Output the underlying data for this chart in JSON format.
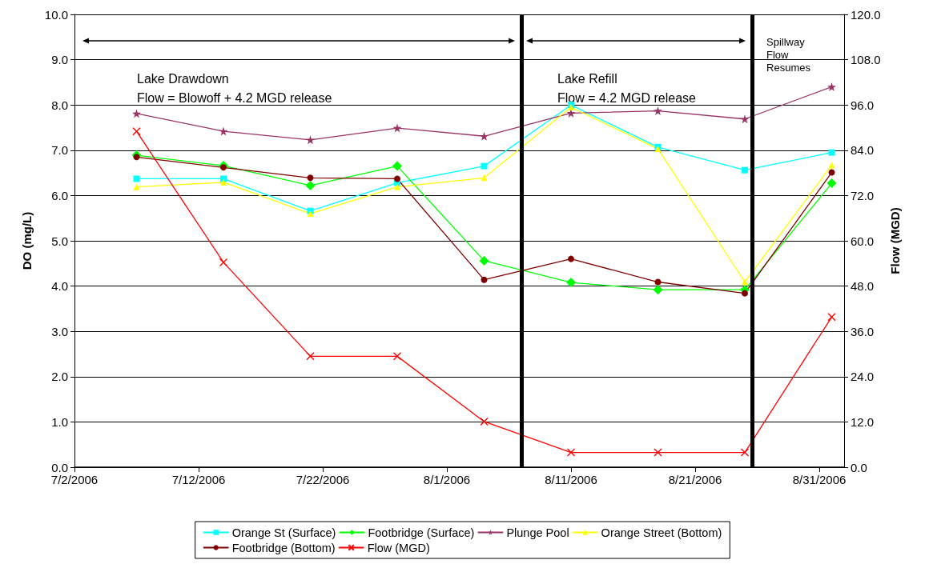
{
  "chart_data": {
    "type": "line",
    "ylabel": "DO (mg/L)",
    "y2label": "Flow (MGD)",
    "x": [
      "2006-07-07",
      "2006-07-14",
      "2006-07-21",
      "2006-07-28",
      "2006-08-04",
      "2006-08-11",
      "2006-08-18",
      "2006-08-25",
      "2006-09-01"
    ],
    "series": [
      {
        "name": "Orange St (Surface)",
        "color": "#00ffff",
        "marker": "square",
        "values": [
          6.37,
          6.37,
          5.66,
          6.28,
          6.65,
          8.0,
          7.07,
          6.56,
          6.95
        ]
      },
      {
        "name": "Footbridge (Surface)",
        "color": "#00ff00",
        "marker": "diamond",
        "values": [
          6.89,
          6.66,
          6.22,
          6.65,
          4.56,
          4.08,
          3.92,
          3.92,
          6.27
        ]
      },
      {
        "name": "Plunge Pool",
        "color": "#993366",
        "marker": "star",
        "values": [
          7.81,
          7.42,
          7.23,
          7.49,
          7.31,
          7.82,
          7.87,
          7.69,
          8.4
        ]
      },
      {
        "name": "Orange Street (Bottom)",
        "color": "#ffff00",
        "marker": "triangle",
        "values": [
          6.19,
          6.29,
          5.6,
          6.19,
          6.39,
          7.95,
          7.03,
          4.09,
          6.67
        ]
      },
      {
        "name": "Footbridge (Bottom)",
        "color": "#800000",
        "marker": "circle",
        "values": [
          6.85,
          6.62,
          6.39,
          6.37,
          4.14,
          4.6,
          4.09,
          3.84,
          6.51
        ]
      },
      {
        "name": "Flow (MGD)",
        "color": "#ff0000",
        "marker": "cross",
        "axis": "y2",
        "values": [
          89.0,
          54.3,
          29.4,
          29.4,
          12.1,
          3.9,
          3.9,
          3.9,
          39.8
        ]
      }
    ],
    "xlim": [
      "2006-07-02",
      "2006-09-02"
    ],
    "xticks": [
      {
        "value": "2006-07-02",
        "label": "7/2/2006"
      },
      {
        "value": "2006-07-12",
        "label": "7/12/2006"
      },
      {
        "value": "2006-07-22",
        "label": "7/22/2006"
      },
      {
        "value": "2006-08-01",
        "label": "8/1/2006"
      },
      {
        "value": "2006-08-11",
        "label": "8/11/2006"
      },
      {
        "value": "2006-08-21",
        "label": "8/21/2006"
      },
      {
        "value": "2006-08-31",
        "label": "8/31/2006"
      }
    ],
    "ylim": [
      0,
      10
    ],
    "yticks": [
      {
        "value": 0,
        "label": "0.0"
      },
      {
        "value": 1,
        "label": "1.0"
      },
      {
        "value": 2,
        "label": "2.0"
      },
      {
        "value": 3,
        "label": "3.0"
      },
      {
        "value": 4,
        "label": "4.0"
      },
      {
        "value": 5,
        "label": "5.0"
      },
      {
        "value": 6,
        "label": "6.0"
      },
      {
        "value": 7,
        "label": "7.0"
      },
      {
        "value": 8,
        "label": "8.0"
      },
      {
        "value": 9,
        "label": "9.0"
      },
      {
        "value": 10,
        "label": "10.0"
      }
    ],
    "y2lim": [
      0,
      120
    ],
    "y2ticks": [
      {
        "value": 0,
        "label": "0.0"
      },
      {
        "value": 12,
        "label": "12.0"
      },
      {
        "value": 24,
        "label": "24.0"
      },
      {
        "value": 36,
        "label": "36.0"
      },
      {
        "value": 48,
        "label": "48.0"
      },
      {
        "value": 60,
        "label": "60.0"
      },
      {
        "value": 72,
        "label": "72.0"
      },
      {
        "value": 84,
        "label": "84.0"
      },
      {
        "value": 96,
        "label": "96.0"
      },
      {
        "value": 108,
        "label": "108.0"
      },
      {
        "value": 120,
        "label": "120.0"
      }
    ],
    "ref_lines": [
      {
        "axis": "x",
        "value": "2006-08-07",
        "color": "#000000"
      },
      {
        "axis": "x",
        "value": "2006-08-25T14:00",
        "color": "#000000"
      }
    ],
    "annotations": [
      "Lake Drawdown\nFlow = Blowoff + 4.2 MGD release",
      "Lake Refill\nFlow = 4.2 MGD release",
      "Spillway\nFlow\nResumes"
    ],
    "grid": "y",
    "legend": "bottom",
    "line_style": "solid"
  }
}
